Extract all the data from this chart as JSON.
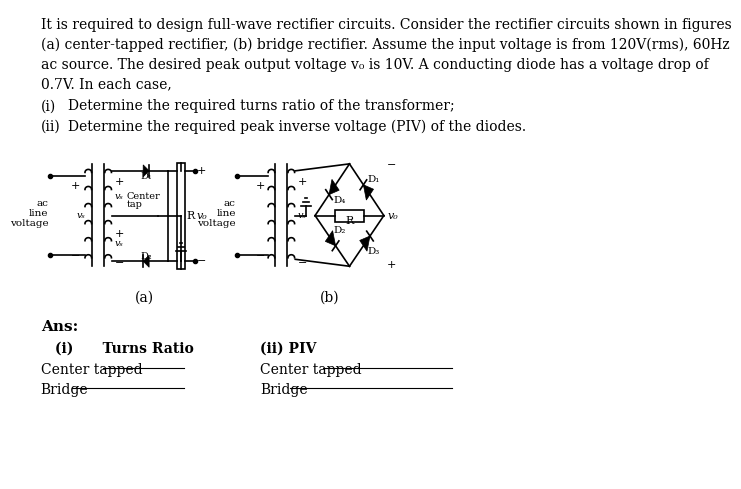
{
  "background_color": "#ffffff",
  "body_lines": [
    "It is required to design full-wave rectifier circuits. Consider the rectifier circuits shown in figures",
    "(a) center-tapped rectifier, (b) bridge rectifier. Assume the input voltage is from 120V(rms), 60Hz",
    "ac source. The desired peak output voltage v₀ is 10V. A conducting diode has a voltage drop of",
    "0.7V. In each case,"
  ],
  "item_i": "Determine the required turns ratio of the transformer;",
  "item_ii": "Determine the required peak inverse voltage (PIV) of the diodes.",
  "label_a": "(a)",
  "label_b": "(b)",
  "ans_label": "Ans:",
  "turns_ratio_label": "(i)      Turns Ratio",
  "piv_label": "(ii) PIV",
  "center_tapped_label1": "Center tapped",
  "bridge_label1": "Bridge",
  "center_tapped_label2": "Center tapped",
  "bridge_label2": "Bridge",
  "font_size_body": 10,
  "text_color": "#000000"
}
